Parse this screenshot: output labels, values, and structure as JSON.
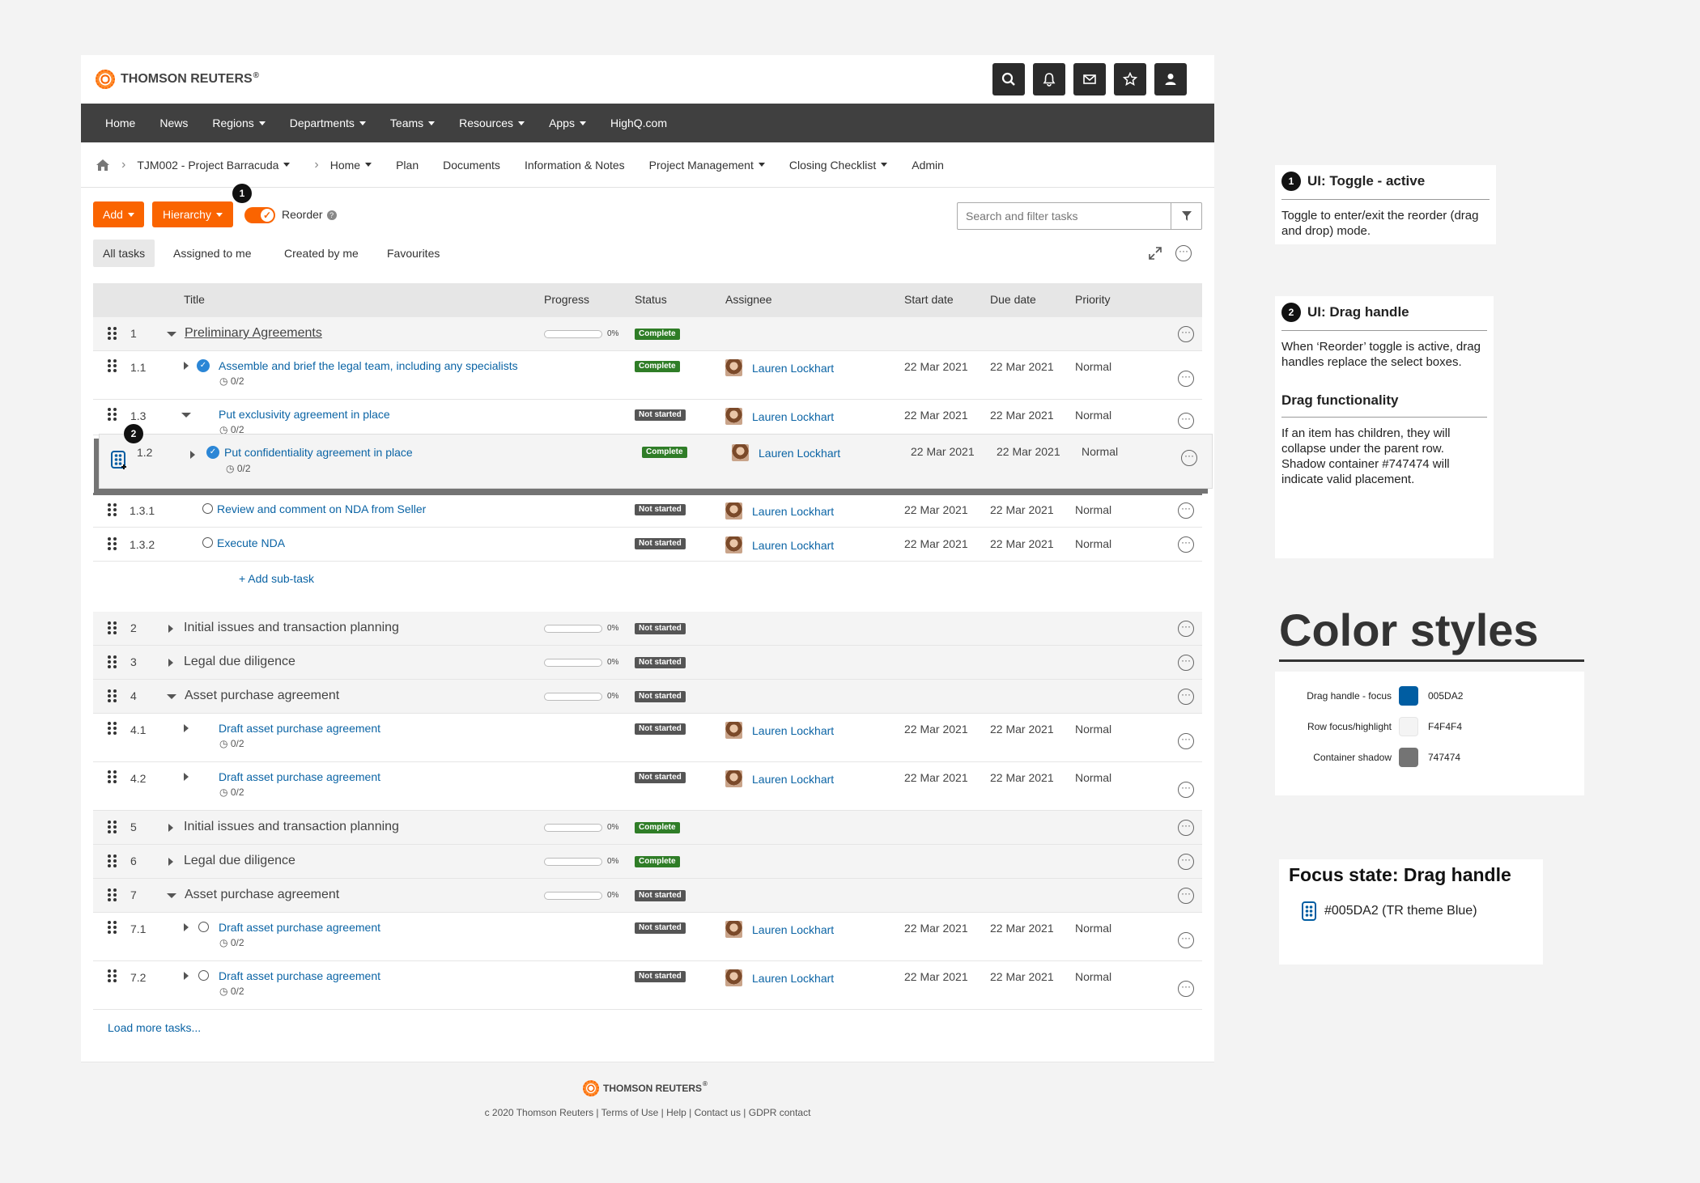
{
  "brand": {
    "name": "THOMSON REUTERS",
    "reg": "®"
  },
  "header_icons": [
    "search-icon",
    "bell-icon",
    "mail-icon",
    "star-icon",
    "user-icon"
  ],
  "nav": [
    {
      "label": "Home",
      "dropdown": false
    },
    {
      "label": "News",
      "dropdown": false
    },
    {
      "label": "Regions",
      "dropdown": true
    },
    {
      "label": "Departments",
      "dropdown": true
    },
    {
      "label": "Teams",
      "dropdown": true
    },
    {
      "label": "Resources",
      "dropdown": true
    },
    {
      "label": "Apps",
      "dropdown": true
    },
    {
      "label": "HighQ.com",
      "dropdown": false
    }
  ],
  "breadcrumb": {
    "project": "TJM002 - Project Barracuda",
    "items": [
      {
        "label": "Home",
        "dropdown": true
      },
      {
        "label": "Plan",
        "dropdown": false
      },
      {
        "label": "Documents",
        "dropdown": false
      },
      {
        "label": "Information & Notes",
        "dropdown": false
      },
      {
        "label": "Project Management",
        "dropdown": true
      },
      {
        "label": "Closing Checklist",
        "dropdown": true
      },
      {
        "label": "Admin",
        "dropdown": false
      }
    ]
  },
  "toolbar": {
    "add_label": "Add",
    "hierarchy_label": "Hierarchy",
    "reorder_label": "Reorder",
    "reorder_on": true,
    "search_placeholder": "Search and filter tasks"
  },
  "tabs": [
    "All tasks",
    "Assigned to me",
    "Created by me",
    "Favourites"
  ],
  "columns": [
    "Title",
    "Progress",
    "Status",
    "Assignee",
    "Start date",
    "Due date",
    "Priority"
  ],
  "rows": [
    {
      "num": "1",
      "title": "Preliminary Agreements",
      "type": "parent",
      "expanded": true,
      "progress": "0%",
      "status": "Complete"
    },
    {
      "num": "1.1",
      "title": "Assemble and brief the legal team, including any specialists",
      "type": "child",
      "check": "done",
      "sub": "0/2",
      "status": "Complete",
      "assignee": "Lauren Lockhart",
      "start": "22 Mar 2021",
      "due": "22 Mar 2021",
      "priority": "Normal"
    },
    {
      "num": "1.3",
      "title": "Put exclusivity agreement in place",
      "type": "child",
      "expanded": true,
      "sub": "0/2",
      "status": "Not started",
      "assignee": "Lauren Lockhart",
      "start": "22 Mar 2021",
      "due": "22 Mar 2021",
      "priority": "Normal"
    },
    {
      "num": "1.3.1",
      "title": "Review and comment on NDA from Seller",
      "type": "grandchild",
      "check": "open",
      "status": "Not started",
      "assignee": "Lauren Lockhart",
      "start": "22 Mar 2021",
      "due": "22 Mar 2021",
      "priority": "Normal"
    },
    {
      "num": "1.3.2",
      "title": "Execute NDA",
      "type": "grandchild",
      "check": "open",
      "status": "Not started",
      "assignee": "Lauren Lockhart",
      "start": "22 Mar 2021",
      "due": "22 Mar 2021",
      "priority": "Normal"
    },
    {
      "num": "2",
      "title": "Initial issues and transaction planning",
      "type": "parent",
      "progress": "0%",
      "status": "Not started"
    },
    {
      "num": "3",
      "title": "Legal due diligence",
      "type": "parent",
      "progress": "0%",
      "status": "Not started"
    },
    {
      "num": "4",
      "title": "Asset purchase agreement",
      "type": "parent",
      "expanded": true,
      "progress": "0%",
      "status": "Not started"
    },
    {
      "num": "4.1",
      "title": "Draft asset purchase agreement",
      "type": "child",
      "sub": "0/2",
      "status": "Not started",
      "assignee": "Lauren Lockhart",
      "start": "22 Mar 2021",
      "due": "22 Mar 2021",
      "priority": "Normal"
    },
    {
      "num": "4.2",
      "title": "Draft asset purchase agreement",
      "type": "child",
      "sub": "0/2",
      "status": "Not started",
      "assignee": "Lauren Lockhart",
      "start": "22 Mar 2021",
      "due": "22 Mar 2021",
      "priority": "Normal"
    },
    {
      "num": "5",
      "title": "Initial issues and transaction planning",
      "type": "parent",
      "progress": "0%",
      "status": "Complete"
    },
    {
      "num": "6",
      "title": "Legal due diligence",
      "type": "parent",
      "progress": "0%",
      "status": "Complete"
    },
    {
      "num": "7",
      "title": "Asset purchase agreement",
      "type": "parent",
      "expanded": true,
      "progress": "0%",
      "status": "Not started"
    },
    {
      "num": "7.1",
      "title": "Draft asset purchase agreement",
      "type": "child",
      "check": "open",
      "sub": "0/2",
      "status": "Not started",
      "assignee": "Lauren Lockhart",
      "start": "22 Mar 2021",
      "due": "22 Mar 2021",
      "priority": "Normal"
    },
    {
      "num": "7.2",
      "title": "Draft asset purchase agreement",
      "type": "child",
      "check": "open",
      "sub": "0/2",
      "status": "Not started",
      "assignee": "Lauren Lockhart",
      "start": "22 Mar 2021",
      "due": "22 Mar 2021",
      "priority": "Normal"
    }
  ],
  "dragging_row": {
    "num": "1.2",
    "title": "Put confidentiality agreement in place",
    "sub": "0/2",
    "status": "Complete",
    "assignee": "Lauren Lockhart",
    "start": "22 Mar 2021",
    "due": "22 Mar 2021",
    "priority": "Normal"
  },
  "add_subtask": "+ Add sub-task",
  "load_more": "Load more tasks...",
  "footer": {
    "brand": "THOMSON REUTERS",
    "reg": "®",
    "links": "c 2020 Thomson Reuters | Terms of Use | Help | Contact us | GDPR contact"
  },
  "callouts": [
    "1",
    "2"
  ],
  "annotations": {
    "toggle": {
      "num": "1",
      "title": "UI: Toggle - active",
      "body": "Toggle to enter/exit the reorder (drag and drop) mode."
    },
    "handle": {
      "num": "2",
      "title": "UI: Drag handle",
      "body": "When ‘Reorder’ toggle is active, drag handles replace the select boxes.",
      "title2": "Drag functionality",
      "body2": "If an item has children, they will collapse under the parent row. Shadow container #747474 will indicate valid placement."
    },
    "colors_title": "Color styles",
    "colors": [
      {
        "name": "Drag handle - focus",
        "hex": "005DA2",
        "color": "#005DA2"
      },
      {
        "name": "Row focus/highlight",
        "hex": "F4F4F4",
        "color": "#F4F4F4"
      },
      {
        "name": "Container shadow",
        "hex": "747474",
        "color": "#747474"
      }
    ],
    "focus_title": "Focus state: Drag handle",
    "focus_body": "#005DA2 (TR theme Blue)"
  }
}
